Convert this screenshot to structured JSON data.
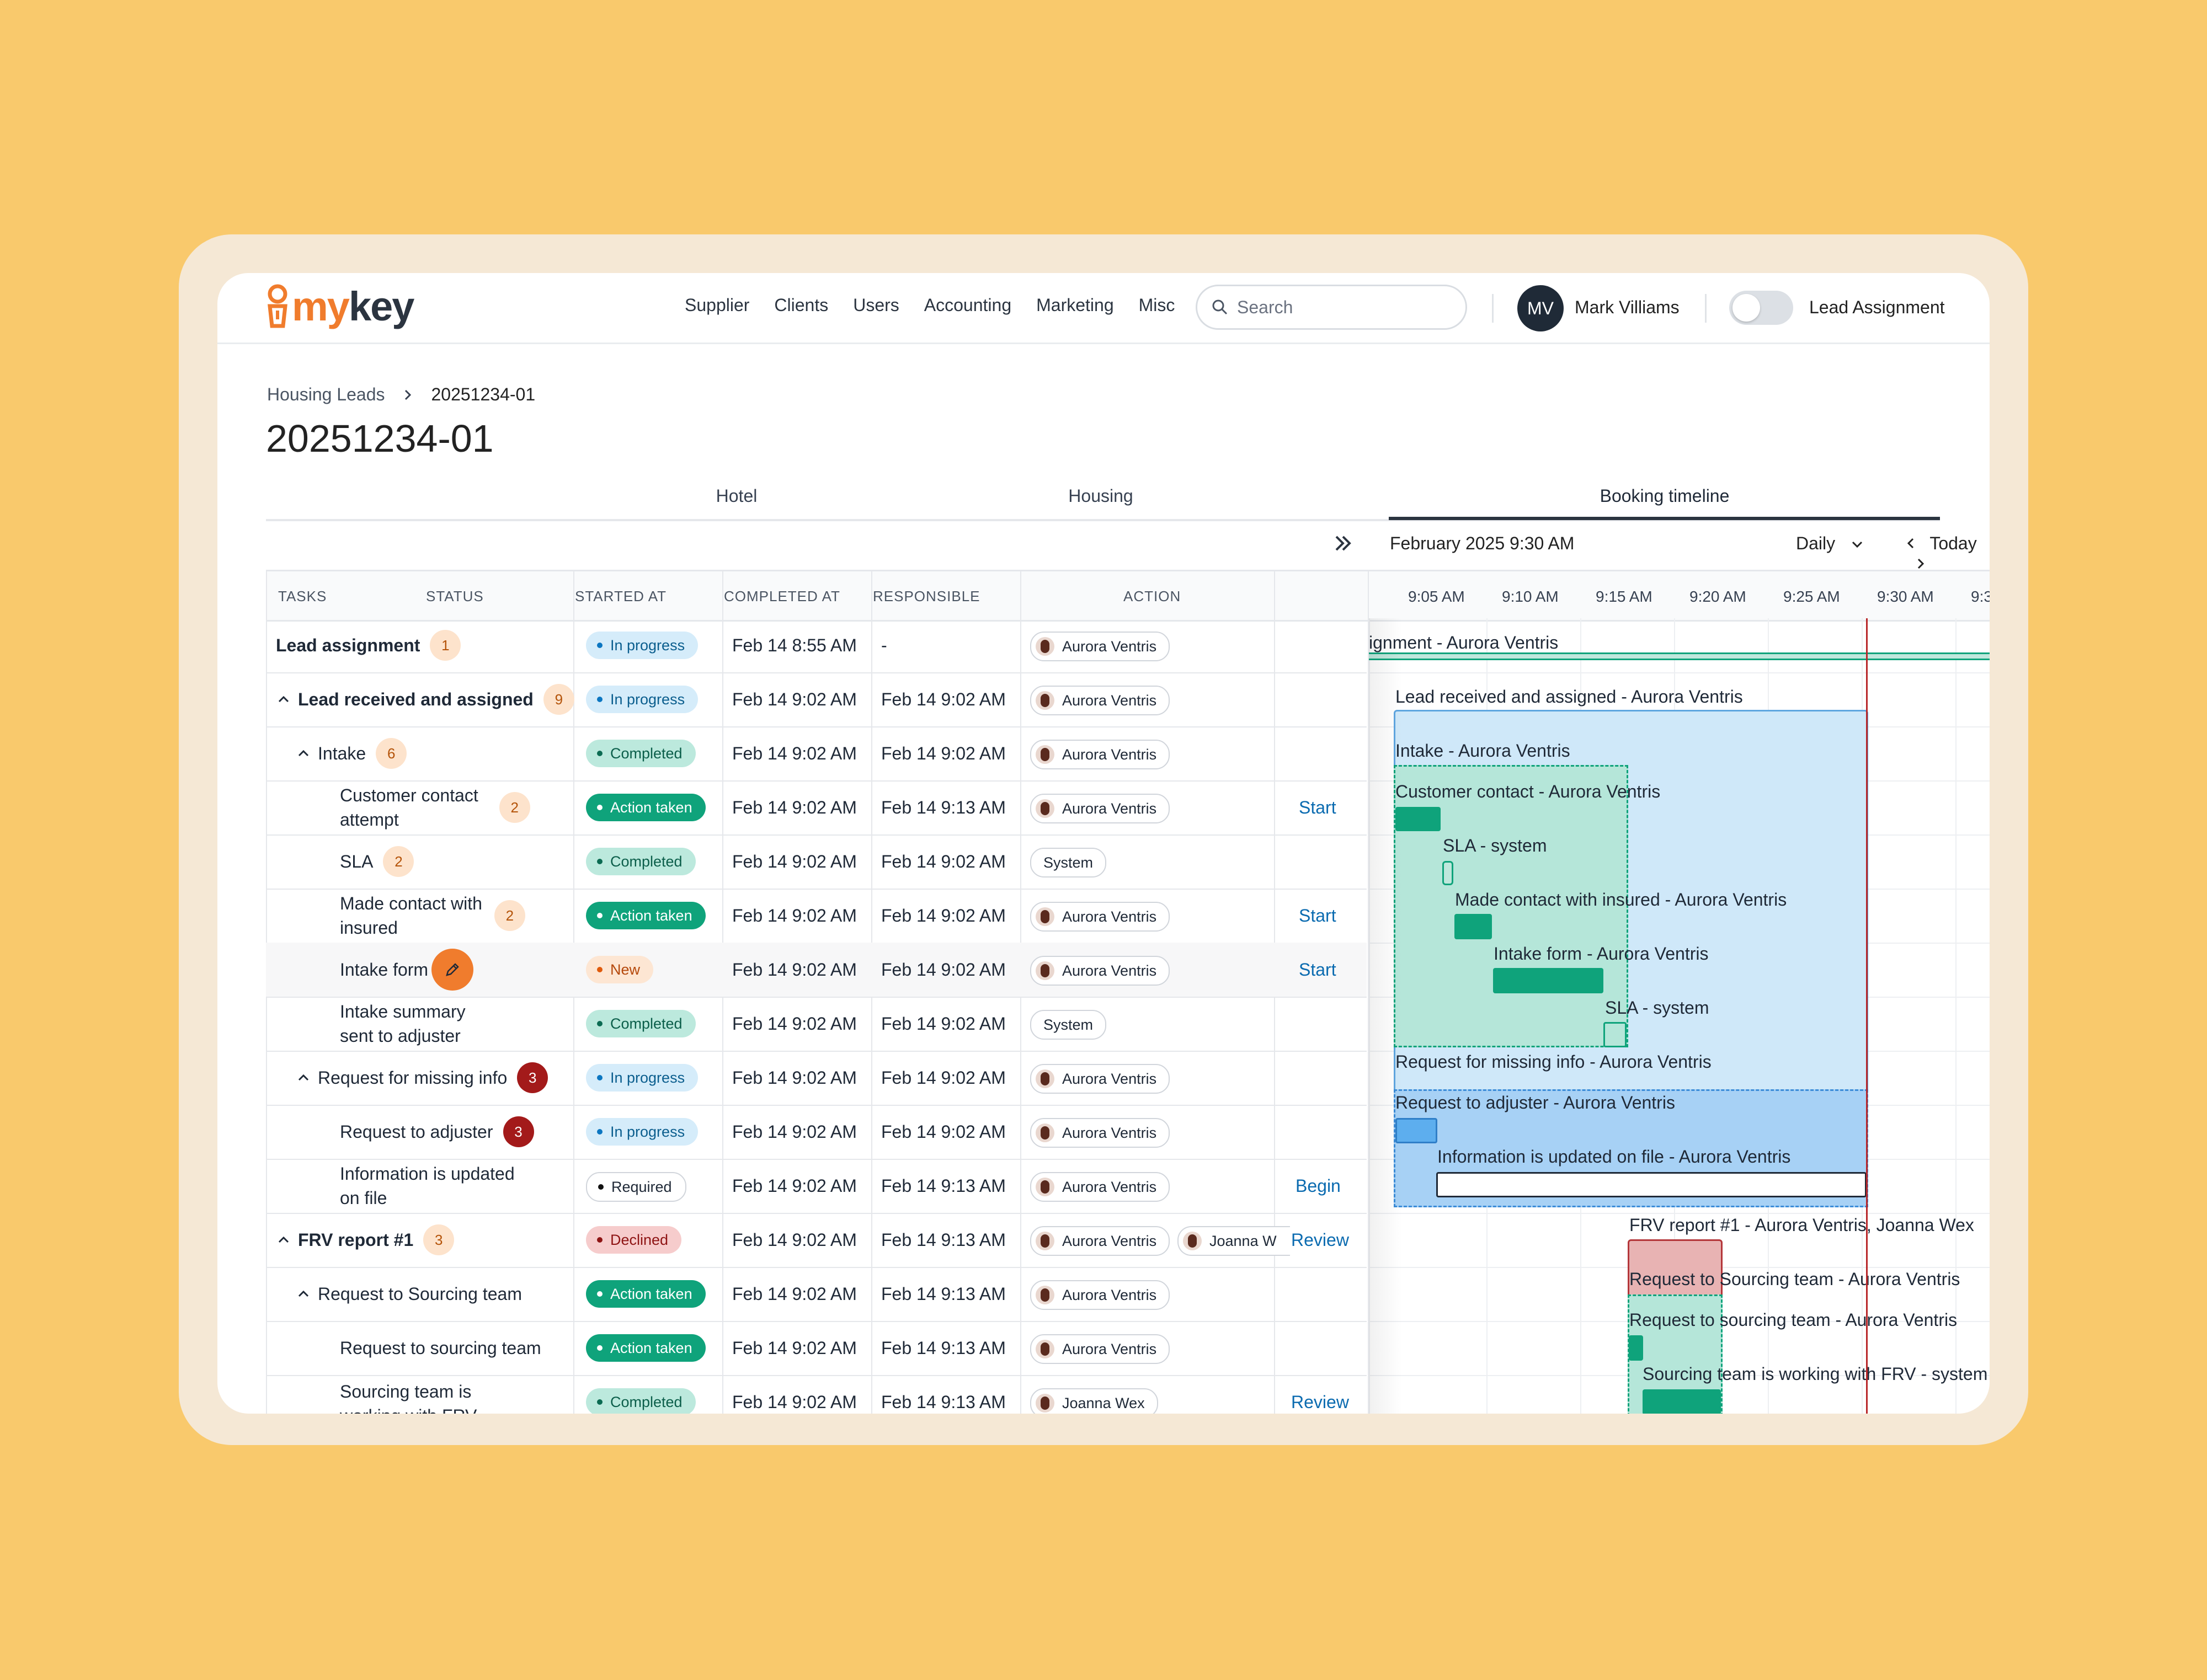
{
  "app": {
    "logo": {
      "my": "my",
      "key": "key"
    },
    "nav": [
      "Supplier",
      "Clients",
      "Users",
      "Accounting",
      "Marketing",
      "Misc"
    ],
    "search": {
      "placeholder": "Search"
    },
    "user": {
      "initials": "MV",
      "name": "Mark Villiams"
    },
    "toggle": {
      "label": "Lead Assignment",
      "on": false
    }
  },
  "breadcrumb": {
    "parent": "Housing Leads",
    "current": "20251234-01"
  },
  "page_title": "20251234-01",
  "tabs": {
    "hotel": "Hotel",
    "housing": "Housing",
    "booking": "Booking timeline",
    "active": "Booking timeline"
  },
  "gantt_toolbar": {
    "date": "February 2025 9:30 AM",
    "scale": "Daily",
    "today": "Today"
  },
  "columns": {
    "tasks": "TASKS",
    "status": "STATUS",
    "started": "STARTED AT",
    "completed": "COMPLETED AT",
    "responsible": "RESPONSIBLE",
    "action": "ACTION"
  },
  "time_ticks": [
    "9:05 AM",
    "9:10 AM",
    "9:15 AM",
    "9:20 AM",
    "9:25 AM",
    "9:30 AM",
    "9:3"
  ],
  "rows": [
    {
      "task": "Lead assignment",
      "count": "1",
      "status": "In progress",
      "started": "Feb 14 8:55 AM",
      "completed": "-",
      "responsible": "Aurora Ventris",
      "action": ""
    },
    {
      "task": "Lead received and assigned",
      "count": "9",
      "status": "In progress",
      "started": "Feb 14 9:02 AM",
      "completed": "Feb 14 9:02 AM",
      "responsible": "Aurora Ventris",
      "action": ""
    },
    {
      "task": "Intake",
      "count": "6",
      "status": "Completed",
      "started": "Feb 14 9:02 AM",
      "completed": "Feb 14 9:02 AM",
      "responsible": "Aurora Ventris",
      "action": ""
    },
    {
      "task_line1": "Customer contact",
      "task_line2": "attempt",
      "count": "2",
      "status": "Action taken",
      "started": "Feb 14 9:02 AM",
      "completed": "Feb 14 9:13 AM",
      "responsible": "Aurora Ventris",
      "action": "Start"
    },
    {
      "task": "SLA",
      "count": "2",
      "status": "Completed",
      "started": "Feb 14 9:02 AM",
      "completed": "Feb 14 9:02 AM",
      "responsible": "System",
      "action": ""
    },
    {
      "task_line1": "Made contact with",
      "task_line2": "insured",
      "count": "2",
      "status": "Action taken",
      "started": "Feb 14 9:02 AM",
      "completed": "Feb 14 9:02 AM",
      "responsible": "Aurora Ventris",
      "action": "Start"
    },
    {
      "task": "Intake form",
      "status": "New",
      "started": "Feb 14 9:02 AM",
      "completed": "Feb 14 9:02 AM",
      "responsible": "Aurora Ventris",
      "action": "Start"
    },
    {
      "task_line1": "Intake summary",
      "task_line2": "sent to adjuster",
      "status": "Completed",
      "started": "Feb 14 9:02 AM",
      "completed": "Feb 14 9:02 AM",
      "responsible": "System",
      "action": ""
    },
    {
      "task": "Request for missing info",
      "count": "3",
      "status": "In progress",
      "started": "Feb 14 9:02 AM",
      "completed": "Feb 14 9:02 AM",
      "responsible": "Aurora Ventris",
      "action": ""
    },
    {
      "task": "Request to adjuster",
      "count": "3",
      "status": "In progress",
      "started": "Feb 14 9:02 AM",
      "completed": "Feb 14 9:02 AM",
      "responsible": "Aurora Ventris",
      "action": ""
    },
    {
      "task_line1": "Information is updated",
      "task_line2": "on file",
      "status": "Required",
      "started": "Feb 14 9:02 AM",
      "completed": "Feb 14 9:13 AM",
      "responsible": "Aurora Ventris",
      "action": "Begin"
    },
    {
      "task": "FRV report #1",
      "count": "3",
      "status": "Declined",
      "started": "Feb 14 9:02 AM",
      "completed": "Feb 14 9:13 AM",
      "responsible": "Aurora Ventris",
      "responsible2": "Joanna W",
      "action": "Review"
    },
    {
      "task": "Request to Sourcing team",
      "status": "Action taken",
      "started": "Feb 14 9:02 AM",
      "completed": "Feb 14 9:13 AM",
      "responsible": "Aurora Ventris",
      "action": ""
    },
    {
      "task": "Request to sourcing team",
      "status": "Action taken",
      "started": "Feb 14 9:02 AM",
      "completed": "Feb 14 9:13 AM",
      "responsible": "Aurora Ventris",
      "action": ""
    },
    {
      "task_line1": "Sourcing team is",
      "task_line2": "working with FRV",
      "status": "Completed",
      "started": "Feb 14 9:02 AM",
      "completed": "Feb 14 9:13 AM",
      "responsible": "Joanna Wex",
      "action": "Review"
    }
  ],
  "gantt_labels": [
    "ignment - Aurora Ventris",
    "Lead received and assigned - Aurora Ventris",
    "Intake - Aurora Ventris",
    "Customer contact - Aurora Ventris",
    "SLA - system",
    "Made contact with insured - Aurora Ventris",
    "Intake form - Aurora Ventris",
    "SLA - system",
    "Request for missing info - Aurora Ventris",
    "Request to adjuster - Aurora Ventris",
    "Information is updated on file - Aurora Ventris",
    "FRV report #1 - Aurora Ventris, Joanna Wex",
    "Request to Sourcing team - Aurora Ventris",
    "Request to sourcing team - Aurora Ventris",
    "Sourcing team is working with FRV - system"
  ],
  "colors": {
    "brand_orange": "#F07C2D",
    "navy": "#2B3440",
    "link": "#0B6BB0",
    "now_line": "#B8282B"
  }
}
